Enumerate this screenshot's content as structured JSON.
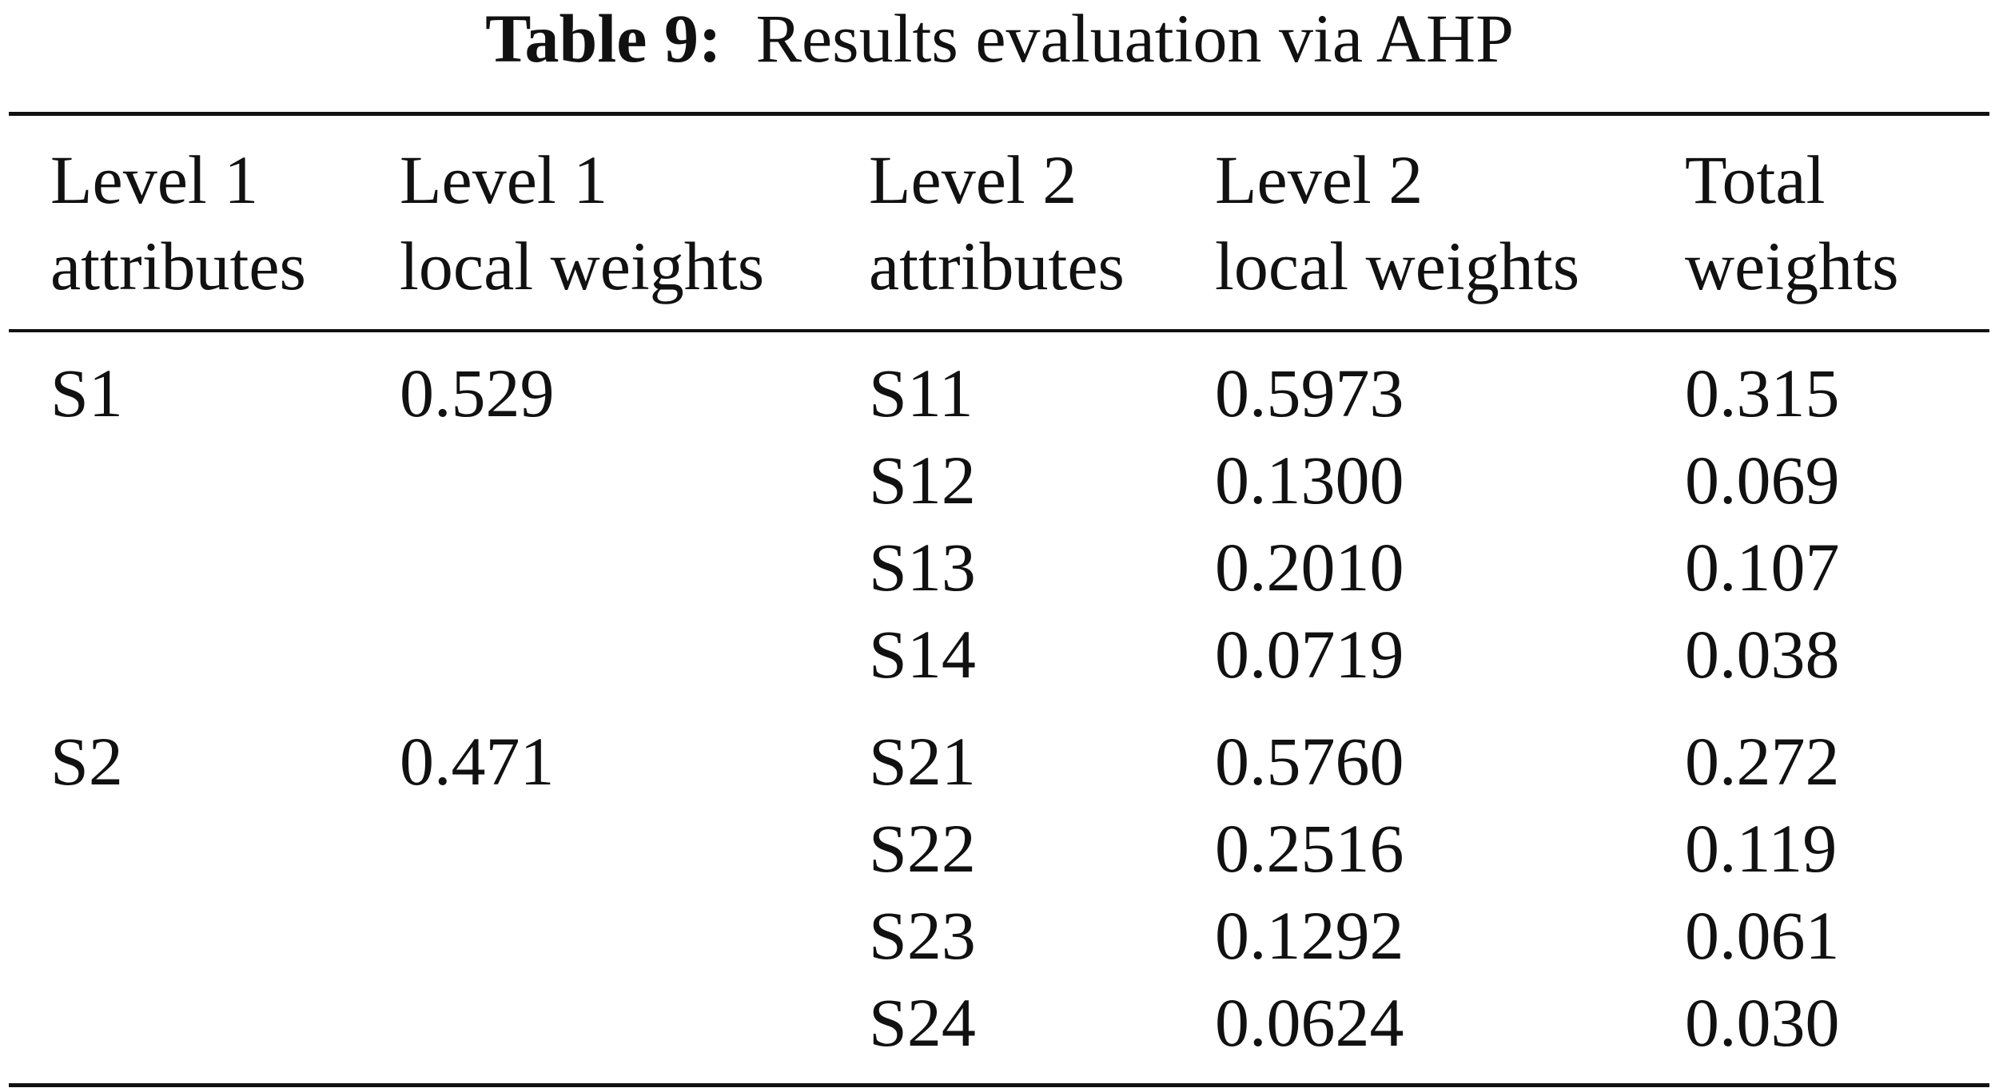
{
  "caption": {
    "label": "Table 9:",
    "text": "Results evaluation via AHP"
  },
  "table": {
    "headers": [
      {
        "line1": "Level 1",
        "line2": "attributes"
      },
      {
        "line1": "Level 1",
        "line2": "local weights"
      },
      {
        "line1": "Level 2",
        "line2": "attributes"
      },
      {
        "line1": "Level 2",
        "line2": "local weights"
      },
      {
        "line1": "Total",
        "line2": "weights"
      }
    ],
    "groups": [
      {
        "level1_attribute": "S1",
        "level1_weight": "0.529",
        "rows": [
          {
            "attribute": "S11",
            "local_weight": "0.5973",
            "total_weight": "0.315"
          },
          {
            "attribute": "S12",
            "local_weight": "0.1300",
            "total_weight": "0.069"
          },
          {
            "attribute": "S13",
            "local_weight": "0.2010",
            "total_weight": "0.107"
          },
          {
            "attribute": "S14",
            "local_weight": "0.0719",
            "total_weight": "0.038"
          }
        ]
      },
      {
        "level1_attribute": "S2",
        "level1_weight": "0.471",
        "rows": [
          {
            "attribute": "S21",
            "local_weight": "0.5760",
            "total_weight": "0.272"
          },
          {
            "attribute": "S22",
            "local_weight": "0.2516",
            "total_weight": "0.119"
          },
          {
            "attribute": "S23",
            "local_weight": "0.1292",
            "total_weight": "0.061"
          },
          {
            "attribute": "S24",
            "local_weight": "0.0624",
            "total_weight": "0.030"
          }
        ]
      }
    ]
  }
}
